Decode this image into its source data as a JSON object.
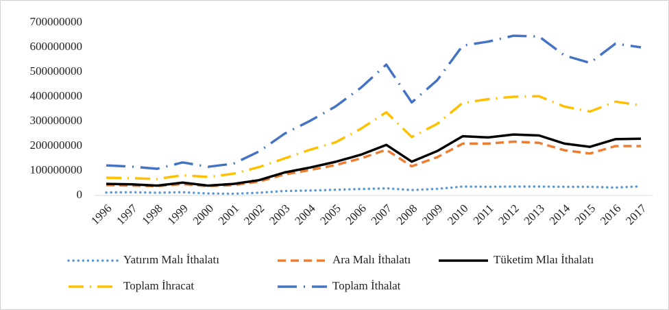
{
  "chart_data": {
    "type": "line",
    "categories": [
      "1996",
      "1997",
      "1998",
      "1999",
      "2000",
      "2001",
      "2002",
      "2003",
      "2004",
      "2005",
      "2006",
      "2007",
      "2008",
      "2009",
      "2010",
      "2011",
      "2012",
      "2013",
      "2014",
      "2015",
      "2016",
      "2017"
    ],
    "series": [
      {
        "name": "Yatırım Malı İthalatı",
        "color": "#5b9bd5",
        "values": [
          12000000,
          13000000,
          11000000,
          13000000,
          8000000,
          7000000,
          11000000,
          18000000,
          20000000,
          23000000,
          26000000,
          29000000,
          22000000,
          27000000,
          36000000,
          35000000,
          36000000,
          36000000,
          35000000,
          35000000,
          32000000,
          37000000
        ]
      },
      {
        "name": "Ara Malı İthalatı",
        "color": "#ed7d31",
        "values": [
          42000000,
          40000000,
          38000000,
          46000000,
          38000000,
          42000000,
          56000000,
          85000000,
          103000000,
          123000000,
          150000000,
          185000000,
          118000000,
          155000000,
          210000000,
          210000000,
          218000000,
          213000000,
          183000000,
          170000000,
          200000000,
          200000000
        ]
      },
      {
        "name": "Tüketim Mlaı İthalatı",
        "color": "#000000",
        "values": [
          47000000,
          45000000,
          40000000,
          52000000,
          40000000,
          47000000,
          62000000,
          93000000,
          113000000,
          136000000,
          165000000,
          205000000,
          137000000,
          180000000,
          240000000,
          235000000,
          247000000,
          243000000,
          210000000,
          197000000,
          228000000,
          230000000
        ]
      },
      {
        "name": "Toplam İhracat",
        "color": "#ffc000",
        "values": [
          72000000,
          70000000,
          67000000,
          82000000,
          75000000,
          88000000,
          115000000,
          150000000,
          185000000,
          215000000,
          270000000,
          337000000,
          237000000,
          290000000,
          375000000,
          390000000,
          400000000,
          402000000,
          360000000,
          340000000,
          380000000,
          365000000
        ]
      },
      {
        "name": "Toplam İthalat",
        "color": "#4472c4",
        "values": [
          122000000,
          117000000,
          108000000,
          134000000,
          116000000,
          129000000,
          178000000,
          250000000,
          302000000,
          360000000,
          436000000,
          530000000,
          377000000,
          467000000,
          607000000,
          623000000,
          647000000,
          644000000,
          567000000,
          537000000,
          615000000,
          600000000
        ]
      }
    ],
    "ylim": [
      0,
      700000000
    ],
    "yticks": [
      0,
      100000000,
      200000000,
      300000000,
      400000000,
      500000000,
      600000000,
      700000000
    ]
  }
}
